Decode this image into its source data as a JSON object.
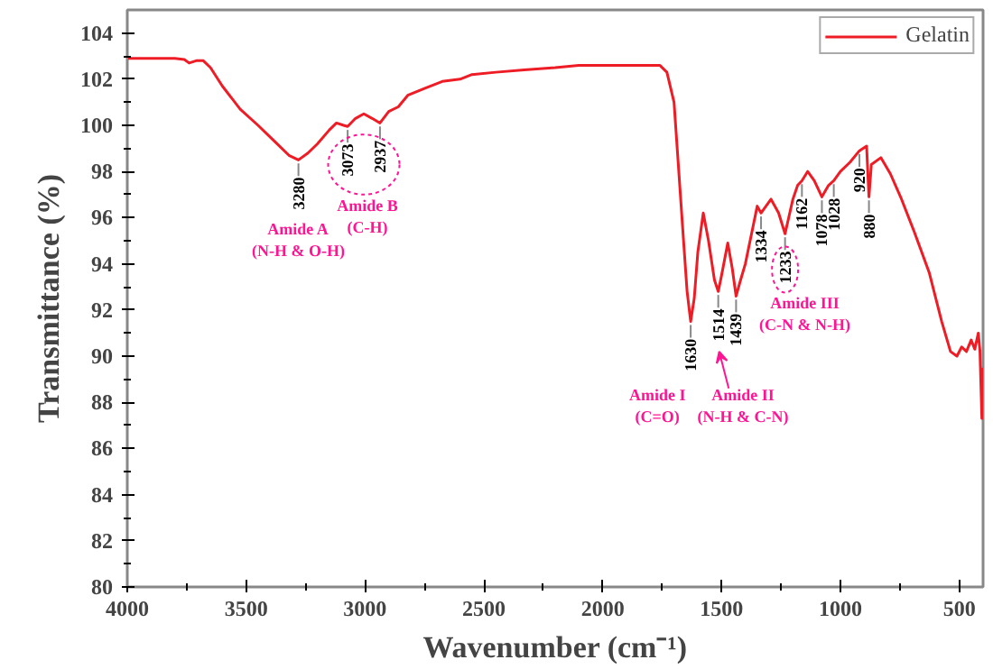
{
  "chart_data": {
    "type": "line",
    "xlabel": "Wavenumber (cm⁻¹)",
    "ylabel": "Transmittance (%)",
    "xlim": [
      4000,
      400
    ],
    "ylim": [
      80,
      105
    ],
    "xticks": [
      4000,
      3500,
      3000,
      2500,
      2000,
      1500,
      1000,
      500
    ],
    "yticks": [
      80,
      82,
      84,
      86,
      88,
      90,
      92,
      94,
      96,
      98,
      100,
      102,
      104
    ],
    "grid": false,
    "legend": "top right",
    "series": [
      {
        "name": "Gelatin",
        "color": "#ee1c25",
        "x": [
          4000,
          3900,
          3800,
          3760,
          3740,
          3710,
          3680,
          3650,
          3600,
          3525,
          3450,
          3380,
          3320,
          3280,
          3240,
          3200,
          3150,
          3120,
          3090,
          3073,
          3040,
          3005,
          2970,
          2937,
          2900,
          2860,
          2820,
          2750,
          2675,
          2600,
          2550,
          2450,
          2330,
          2200,
          2100,
          2000,
          1900,
          1800,
          1760,
          1730,
          1700,
          1680,
          1660,
          1645,
          1630,
          1615,
          1600,
          1577,
          1555,
          1530,
          1514,
          1500,
          1474,
          1455,
          1439,
          1420,
          1400,
          1370,
          1350,
          1334,
          1320,
          1292,
          1260,
          1233,
          1200,
          1180,
          1162,
          1138,
          1110,
          1078,
          1050,
          1028,
          1000,
          960,
          920,
          890,
          880,
          870,
          830,
          790,
          743,
          690,
          626,
          574,
          537,
          510,
          490,
          470,
          450,
          435,
          420,
          413,
          405,
          402
        ],
        "values": [
          102.9,
          102.9,
          102.9,
          102.85,
          102.7,
          102.8,
          102.8,
          102.5,
          101.7,
          100.7,
          100.0,
          99.3,
          98.7,
          98.5,
          98.8,
          99.2,
          99.8,
          100.1,
          100.0,
          99.95,
          100.3,
          100.5,
          100.3,
          100.1,
          100.6,
          100.8,
          101.3,
          101.6,
          101.9,
          102.0,
          102.2,
          102.3,
          102.4,
          102.5,
          102.6,
          102.6,
          102.6,
          102.6,
          102.6,
          102.3,
          101.0,
          98.0,
          95.0,
          92.8,
          91.5,
          92.5,
          94.5,
          96.2,
          95.0,
          93.3,
          92.8,
          93.5,
          94.9,
          93.8,
          92.6,
          93.3,
          94.0,
          95.5,
          96.5,
          96.2,
          96.4,
          96.8,
          96.2,
          95.3,
          96.8,
          97.4,
          97.6,
          98.0,
          97.6,
          96.9,
          97.4,
          97.6,
          98.0,
          98.4,
          98.9,
          99.1,
          96.9,
          98.3,
          98.6,
          97.9,
          96.8,
          95.4,
          93.6,
          91.5,
          90.2,
          90.0,
          90.4,
          90.2,
          90.7,
          90.3,
          91.0,
          90.2,
          87.3,
          89.5
        ]
      }
    ],
    "annotations": [
      {
        "text": "3280",
        "x": 3280,
        "y": 98.5
      },
      {
        "text": "3073",
        "x": 3073,
        "y": 99.95
      },
      {
        "text": "2937",
        "x": 2937,
        "y": 100.1
      },
      {
        "text": "1630",
        "x": 1630,
        "y": 91.5
      },
      {
        "text": "1514",
        "x": 1514,
        "y": 92.8
      },
      {
        "text": "1439",
        "x": 1439,
        "y": 92.6
      },
      {
        "text": "1334",
        "x": 1334,
        "y": 96.2
      },
      {
        "text": "1233",
        "x": 1233,
        "y": 95.3
      },
      {
        "text": "1162",
        "x": 1162,
        "y": 97.6
      },
      {
        "text": "1078",
        "x": 1078,
        "y": 96.9
      },
      {
        "text": "1028",
        "x": 1028,
        "y": 97.6
      },
      {
        "text": "920",
        "x": 920,
        "y": 98.9
      },
      {
        "text": "880",
        "x": 880,
        "y": 96.9
      },
      "Amide A\n(N-H & O-H)",
      "Amide B\n(C-H)",
      "Amide I\n(C=O)",
      "Amide II\n(N-H & C-N)",
      "Amide III\n(C-N & N-H)"
    ]
  }
}
